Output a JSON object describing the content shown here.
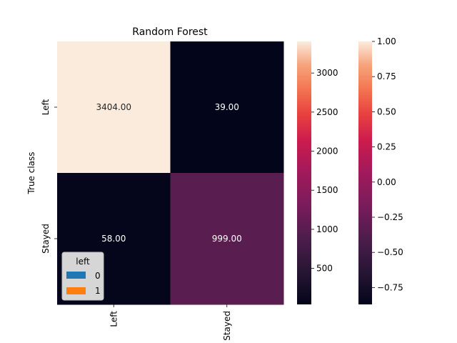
{
  "chart_data": {
    "type": "heatmap",
    "title": "Random Forest",
    "xlabel": "",
    "ylabel": "True class",
    "x_categories": [
      "Left",
      "Stayed"
    ],
    "y_categories": [
      "Left",
      "Stayed"
    ],
    "values": [
      [
        3404,
        39
      ],
      [
        58,
        999
      ]
    ],
    "cell_labels": [
      [
        "3404.00",
        "39.00"
      ],
      [
        "58.00",
        "999.00"
      ]
    ],
    "colormap": "rocket",
    "colorbars": [
      {
        "range": [
          39,
          3404
        ],
        "ticks": [
          500,
          1000,
          1500,
          2000,
          2500,
          3000
        ]
      },
      {
        "range": [
          -0.87,
          1.0
        ],
        "ticks": [
          -0.75,
          -0.5,
          -0.25,
          0.0,
          0.25,
          0.5,
          0.75,
          1.0
        ],
        "tick_labels": [
          "−0.75",
          "−0.50",
          "−0.25",
          "0.00",
          "0.25",
          "0.50",
          "0.75",
          "1.00"
        ]
      }
    ],
    "legend": {
      "title": "left",
      "placement": "lower-left",
      "entries": [
        {
          "label": "0",
          "color": "#1f77b4"
        },
        {
          "label": "1",
          "color": "#ff7f0e"
        }
      ]
    }
  }
}
